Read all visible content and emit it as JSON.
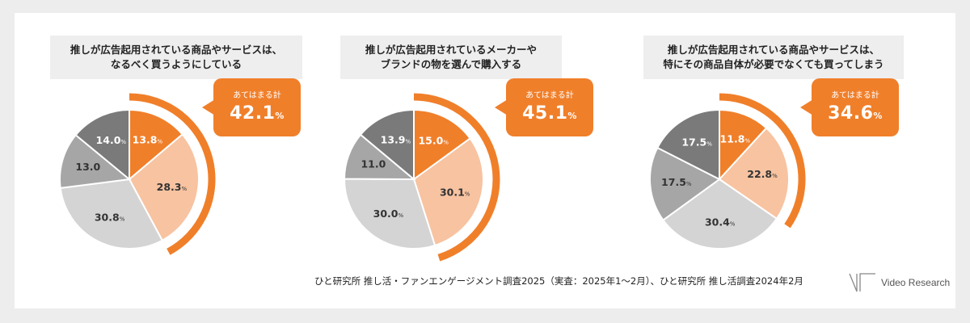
{
  "colors": {
    "accent": "#f07f2a",
    "slice_colors": [
      "#f07f2a",
      "#f7c3a1",
      "#d4d4d4",
      "#a6a6a6",
      "#7a7a7a"
    ]
  },
  "chart_data": [
    {
      "type": "pie",
      "title_lines": [
        "推しが広告起用されている商品やサービスは、",
        "なるべく買うようにしている"
      ],
      "values": [
        13.8,
        28.3,
        30.8,
        13.0,
        14.0
      ],
      "labels": [
        "13.8",
        "28.3",
        "30.8",
        "13.0",
        "14.0"
      ],
      "show_pct": [
        true,
        true,
        true,
        false,
        true
      ],
      "callout_label": "あてはまる計",
      "callout_value": "42.1",
      "callout_unit": "%"
    },
    {
      "type": "pie",
      "title_lines": [
        "推しが広告起用されているメーカーや",
        "ブランドの物を選んで購入する"
      ],
      "values": [
        15.0,
        30.1,
        30.0,
        11.0,
        13.9
      ],
      "labels": [
        "15.0",
        "30.1",
        "30.0",
        "11.0",
        "13.9"
      ],
      "show_pct": [
        true,
        true,
        true,
        false,
        true
      ],
      "callout_label": "あてはまる計",
      "callout_value": "45.1",
      "callout_unit": "%"
    },
    {
      "type": "pie",
      "title_lines": [
        "推しが広告起用されている商品やサービスは、",
        "特にその商品自体が必要でなくても買ってしまう"
      ],
      "values": [
        11.8,
        22.8,
        30.4,
        17.5,
        17.5
      ],
      "labels": [
        "11.8",
        "22.8",
        "30.4",
        "17.5",
        "17.5"
      ],
      "show_pct": [
        true,
        true,
        true,
        true,
        true
      ],
      "callout_label": "あてはまる計",
      "callout_value": "34.6",
      "callout_unit": "%"
    }
  ],
  "pct_sign": "%",
  "footer": "ひと研究所 推し活・ファンエンゲージメント調査2025（実査：2025年1～2月）、ひと研究所 推し活調査2024年2月",
  "brand": "Video Research"
}
